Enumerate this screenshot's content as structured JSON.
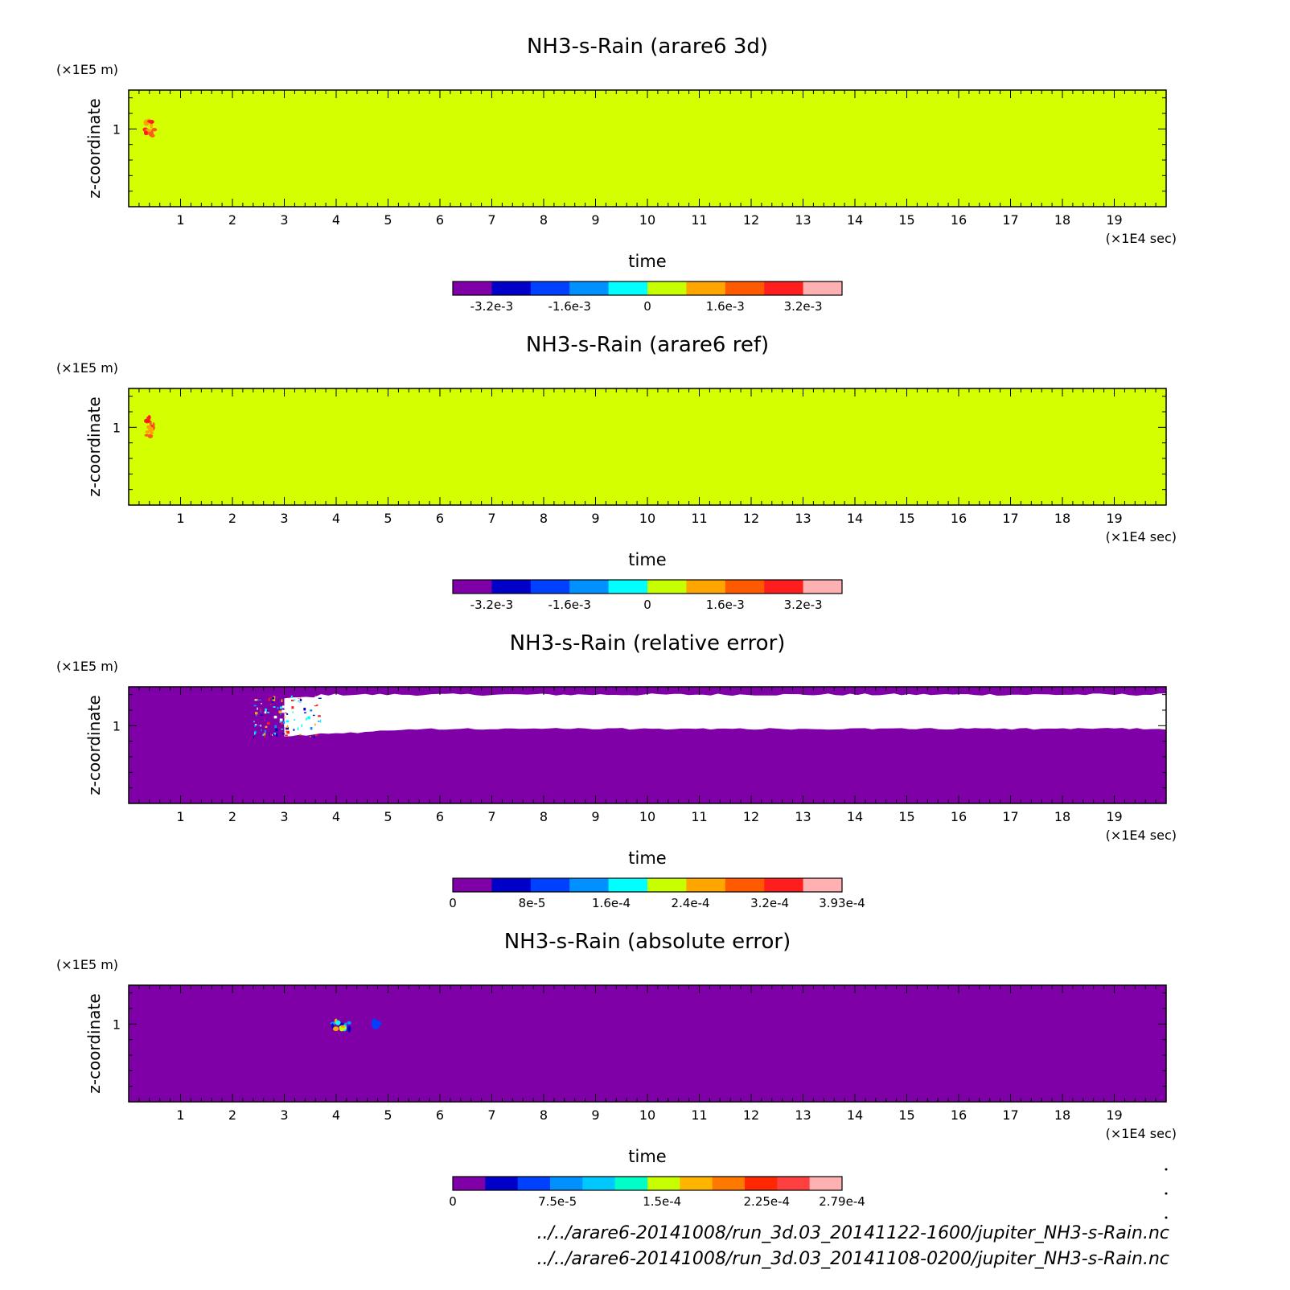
{
  "chart_data": [
    {
      "type": "heatmap",
      "title": "NH3-s-Rain (arare6 3d)",
      "xlabel": "time",
      "ylabel": "z-coordinate",
      "xunit": "(×1E4 sec)",
      "yunit": "(×1E5 m)",
      "xlim": [
        0,
        20
      ],
      "ylim": [
        0.5,
        1.25
      ],
      "xticks": [
        "1",
        "2",
        "3",
        "4",
        "5",
        "6",
        "7",
        "8",
        "9",
        "10",
        "11",
        "12",
        "13",
        "14",
        "15",
        "16",
        "17",
        "18",
        "19"
      ],
      "yticks": [
        "1"
      ],
      "background_color": "#d4ff00",
      "features": [
        {
          "kind": "blob",
          "x": 0.4,
          "y": 1.0,
          "dx": 0.1,
          "dy": 0.07,
          "colors": [
            "#ff5a1e",
            "#ffa500",
            "#ff1e1e"
          ]
        }
      ],
      "colorbar": {
        "colors": [
          "#8000a8",
          "#0000c8",
          "#0040ff",
          "#0090ff",
          "#00ffff",
          "#c8ff00",
          "#ffa500",
          "#ff5a00",
          "#ff1e1e",
          "#ffb0b0"
        ],
        "tick_labels": [
          "-3.2e-3",
          "-1.6e-3",
          "0",
          "1.6e-3",
          "3.2e-3"
        ],
        "tick_positions": [
          -0.0032,
          -0.0016,
          0,
          0.0016,
          0.0032
        ],
        "range": [
          -0.004,
          0.004
        ]
      }
    },
    {
      "type": "heatmap",
      "title": "NH3-s-Rain (arare6 ref)",
      "xlabel": "time",
      "ylabel": "z-coordinate",
      "xunit": "(×1E4 sec)",
      "yunit": "(×1E5 m)",
      "xlim": [
        0,
        20
      ],
      "ylim": [
        0.5,
        1.25
      ],
      "xticks": [
        "1",
        "2",
        "3",
        "4",
        "5",
        "6",
        "7",
        "8",
        "9",
        "10",
        "11",
        "12",
        "13",
        "14",
        "15",
        "16",
        "17",
        "18",
        "19"
      ],
      "yticks": [
        "1"
      ],
      "background_color": "#d4ff00",
      "features": [
        {
          "kind": "blob",
          "x": 0.4,
          "y": 1.0,
          "dx": 0.1,
          "dy": 0.07,
          "colors": [
            "#ff5a1e",
            "#ffa500",
            "#ff1e1e"
          ]
        }
      ],
      "colorbar": {
        "colors": [
          "#8000a8",
          "#0000c8",
          "#0040ff",
          "#0090ff",
          "#00ffff",
          "#c8ff00",
          "#ffa500",
          "#ff5a00",
          "#ff1e1e",
          "#ffb0b0"
        ],
        "tick_labels": [
          "-3.2e-3",
          "-1.6e-3",
          "0",
          "1.6e-3",
          "3.2e-3"
        ],
        "tick_positions": [
          -0.0032,
          -0.0016,
          0,
          0.0016,
          0.0032
        ],
        "range": [
          -0.004,
          0.004
        ]
      }
    },
    {
      "type": "heatmap",
      "title": "NH3-s-Rain (relative error)",
      "xlabel": "time",
      "ylabel": "z-coordinate",
      "xunit": "(×1E4 sec)",
      "yunit": "(×1E5 m)",
      "xlim": [
        0,
        20
      ],
      "ylim": [
        0.5,
        1.25
      ],
      "xticks": [
        "1",
        "2",
        "3",
        "4",
        "5",
        "6",
        "7",
        "8",
        "9",
        "10",
        "11",
        "12",
        "13",
        "14",
        "15",
        "16",
        "17",
        "18",
        "19"
      ],
      "yticks": [
        "1"
      ],
      "background_color": "#8000a8",
      "features": [
        {
          "kind": "undefined-band",
          "x_start": 3.0,
          "x_end": 20.0,
          "y_low": 0.98,
          "y_high": 1.2,
          "color": "#ffffff"
        },
        {
          "kind": "scatter-noise",
          "x_start": 2.4,
          "x_end": 3.7,
          "y_low": 0.93,
          "y_high": 1.2,
          "colors": [
            "#0000c8",
            "#0090ff",
            "#00ffff",
            "#ffa500",
            "#ff1e1e",
            "#ffffff"
          ]
        }
      ],
      "colorbar": {
        "colors": [
          "#8000a8",
          "#0000c8",
          "#0040ff",
          "#0090ff",
          "#00ffff",
          "#c8ff00",
          "#ffa500",
          "#ff5a00",
          "#ff1e1e",
          "#ffb0b0"
        ],
        "tick_labels": [
          "0",
          "8e-5",
          "1.6e-4",
          "2.4e-4",
          "3.2e-4",
          "3.93e-4"
        ],
        "tick_positions": [
          0,
          8e-05,
          0.00016,
          0.00024,
          0.00032,
          0.000393
        ],
        "range": [
          0,
          0.000393
        ]
      }
    },
    {
      "type": "heatmap",
      "title": "NH3-s-Rain (absolute error)",
      "xlabel": "time",
      "ylabel": "z-coordinate",
      "xunit": "(×1E4 sec)",
      "yunit": "(×1E5 m)",
      "xlim": [
        0,
        20
      ],
      "ylim": [
        0.5,
        1.25
      ],
      "xticks": [
        "1",
        "2",
        "3",
        "4",
        "5",
        "6",
        "7",
        "8",
        "9",
        "10",
        "11",
        "12",
        "13",
        "14",
        "15",
        "16",
        "17",
        "18",
        "19"
      ],
      "yticks": [
        "1"
      ],
      "background_color": "#8000a8",
      "features": [
        {
          "kind": "blob",
          "x": 4.1,
          "y": 0.98,
          "dx": 0.18,
          "dy": 0.04,
          "colors": [
            "#0090ff",
            "#00ffff",
            "#c8ff00",
            "#ffa500",
            "#0000c8"
          ]
        },
        {
          "kind": "blob",
          "x": 4.78,
          "y": 1.0,
          "dx": 0.05,
          "dy": 0.02,
          "colors": [
            "#0040ff"
          ]
        }
      ],
      "colorbar": {
        "colors": [
          "#8000a8",
          "#0000c8",
          "#0040ff",
          "#0090ff",
          "#00c8ff",
          "#00ffc8",
          "#c8ff00",
          "#ffb400",
          "#ff7800",
          "#ff2800",
          "#ff4040",
          "#ffb0b0"
        ],
        "tick_labels": [
          "0",
          "7.5e-5",
          "1.5e-4",
          "2.25e-4",
          "2.79e-4"
        ],
        "tick_positions": [
          0,
          7.5e-05,
          0.00015,
          0.000225,
          0.000279
        ],
        "range": [
          0,
          0.000279
        ]
      }
    }
  ],
  "footer": {
    "files": [
      "../../arare6-20141008/run_3d.03_20141122-1600/jupiter_NH3-s-Rain.nc",
      "../../arare6-20141008/run_3d.03_20141108-0200/jupiter_NH3-s-Rain.nc"
    ]
  }
}
